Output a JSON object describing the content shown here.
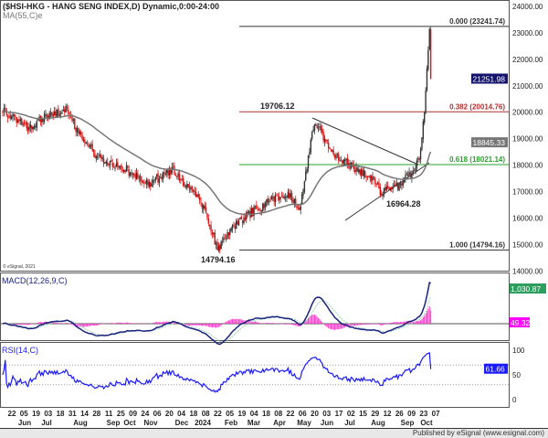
{
  "title": "($HSI-HKG - HANG SENG INDEX,D) Dynamic,0:00-24:00",
  "ma_label": "MA(55,C)e",
  "copyright": "© eSignal, 2021",
  "macd_label": "MACD(12,26,9,C)",
  "rsi_label": "RSI(14,C)",
  "footer": "Published by eSignal (www.esignal.com)",
  "chart_data": {
    "type": "candlestick",
    "price_axis": {
      "min": 14000,
      "max": 24000,
      "ticks": [
        "24000.00",
        "23000.00",
        "22000.00",
        "21000.00",
        "20000.00",
        "19000.00",
        "18000.00",
        "17000.00",
        "16000.00",
        "15000.00",
        "14000.00"
      ]
    },
    "bars": 340,
    "price_path": [
      [
        0,
        20100
      ],
      [
        20,
        19400
      ],
      [
        35,
        19900
      ],
      [
        50,
        20100
      ],
      [
        60,
        19200
      ],
      [
        75,
        18300
      ],
      [
        95,
        17900
      ],
      [
        115,
        17300
      ],
      [
        135,
        17800
      ],
      [
        150,
        17000
      ],
      [
        160,
        16400
      ],
      [
        170,
        14794.16
      ],
      [
        185,
        15800
      ],
      [
        200,
        16300
      ],
      [
        215,
        16700
      ],
      [
        228,
        16900
      ],
      [
        235,
        16300
      ],
      [
        247,
        19706.12
      ],
      [
        260,
        18500
      ],
      [
        275,
        18000
      ],
      [
        290,
        17600
      ],
      [
        300,
        16964.28
      ],
      [
        315,
        17300
      ],
      [
        325,
        17800
      ],
      [
        330,
        18300
      ],
      [
        334,
        20000
      ],
      [
        338,
        23241.74
      ],
      [
        340,
        21251.98
      ]
    ],
    "fibonacci": [
      {
        "label": "0.000 (23241.74)",
        "level": 23241.74,
        "color": "#333333"
      },
      {
        "label": "0.382 (20014.76)",
        "level": 20014.76,
        "color": "#b03030"
      },
      {
        "label": "0.618 (18021.14)",
        "level": 18021.14,
        "color": "#2aa02a"
      },
      {
        "label": "1.000 (14794.16)",
        "level": 14794.16,
        "color": "#333333"
      }
    ],
    "annotations": [
      "19706.12",
      "16964.28",
      "14794.16"
    ],
    "last_price": "21251.98",
    "ma_value": "18845.33",
    "macd_value": "1,030.87",
    "macd_hist_value": "49.32",
    "rsi_value": "61.66",
    "rsi_ticks": [
      "100",
      "50",
      "0"
    ],
    "x_days": [
      "22",
      "05",
      "19",
      "03",
      "18",
      "31",
      "14",
      "28",
      "11",
      "25",
      "09",
      "24",
      "06",
      "20",
      "04",
      "18",
      "08",
      "22",
      "05",
      "19",
      "04",
      "18",
      "08",
      "22",
      "06",
      "20",
      "03",
      "17",
      "02",
      "15",
      "29",
      "12",
      "26",
      "09",
      "23",
      "07"
    ],
    "x_months": [
      "Jun",
      "Jul",
      "Aug",
      "Sep",
      "Oct",
      "Nov",
      "Dec",
      "2024",
      "Feb",
      "Mar",
      "Apr",
      "May",
      "Jun",
      "Jul",
      "Aug",
      "Sep",
      "Oct"
    ],
    "colors": {
      "up": "#333333",
      "down": "#dd1111",
      "ma": "#777777",
      "macd": "#1a237e",
      "signal": "#9fd6b8",
      "hist": "#ff33cc",
      "rsi": "#1a1aff"
    }
  }
}
